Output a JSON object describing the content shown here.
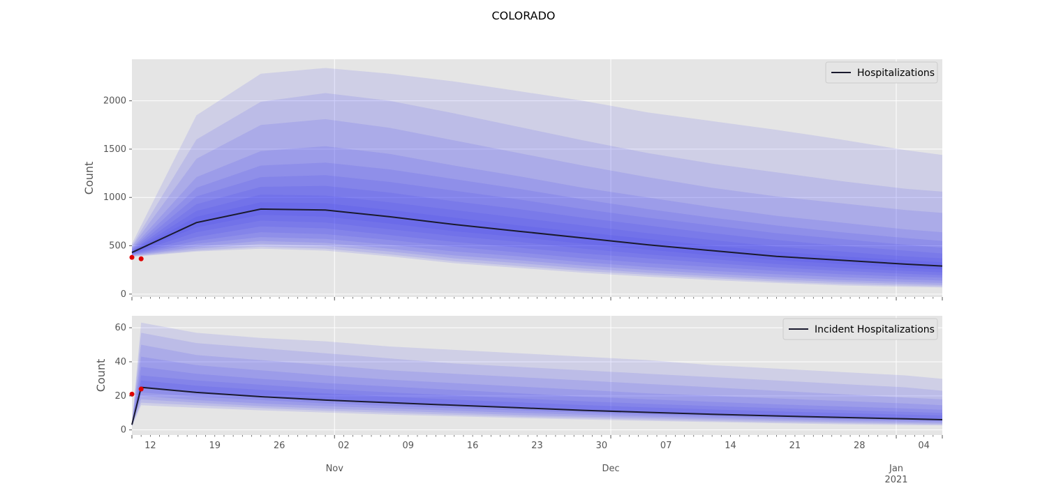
{
  "figure": {
    "title": "COLORADO"
  },
  "colors": {
    "panel_bg": "#e5e5e5",
    "grid": "#ffffff",
    "band": "#3c3cf0",
    "median": "#1a1a2e",
    "observed": "#e00000",
    "tick": "#555555"
  },
  "chart_data": [
    {
      "type": "area",
      "title": "",
      "ylabel": "Count",
      "xlim": [
        "2020-10-10",
        "2021-01-06"
      ],
      "ylim": [
        -30,
        2430
      ],
      "yticks": [
        0,
        500,
        1000,
        1500,
        2000
      ],
      "grid": true,
      "legend": {
        "placement": "top-right",
        "entries": [
          "Hospitalizations"
        ]
      },
      "x": [
        "2020-10-10",
        "2020-10-17",
        "2020-10-24",
        "2020-10-31",
        "2020-11-07",
        "2020-11-14",
        "2020-11-21",
        "2020-11-28",
        "2020-12-05",
        "2020-12-12",
        "2020-12-19",
        "2020-12-26",
        "2021-01-02",
        "2021-01-06"
      ],
      "median": [
        430,
        740,
        880,
        870,
        800,
        720,
        650,
        580,
        510,
        450,
        390,
        350,
        310,
        290
      ],
      "quantile_bands": [
        {
          "upper": [
            520,
            1850,
            2280,
            2340,
            2280,
            2200,
            2100,
            2000,
            1880,
            1790,
            1700,
            1600,
            1490,
            1440
          ]
        },
        {
          "upper": [
            500,
            1600,
            1990,
            2080,
            2000,
            1870,
            1730,
            1590,
            1460,
            1350,
            1260,
            1170,
            1090,
            1060
          ]
        },
        {
          "upper": [
            490,
            1400,
            1750,
            1810,
            1720,
            1590,
            1460,
            1330,
            1210,
            1100,
            1010,
            940,
            870,
            840
          ]
        },
        {
          "upper": [
            475,
            1210,
            1480,
            1530,
            1450,
            1330,
            1220,
            1100,
            1000,
            900,
            810,
            740,
            670,
            640
          ]
        },
        {
          "upper": [
            465,
            1100,
            1330,
            1360,
            1290,
            1190,
            1090,
            980,
            880,
            790,
            710,
            640,
            580,
            550
          ]
        },
        {
          "upper": [
            455,
            1010,
            1210,
            1230,
            1160,
            1070,
            980,
            880,
            790,
            710,
            630,
            570,
            510,
            480
          ]
        },
        {
          "upper": [
            445,
            930,
            1110,
            1120,
            1050,
            960,
            880,
            790,
            710,
            630,
            560,
            500,
            450,
            420
          ]
        },
        {
          "upper": [
            440,
            860,
            1030,
            1020,
            950,
            870,
            790,
            710,
            630,
            560,
            490,
            440,
            390,
            370
          ]
        },
        {
          "upper": [
            435,
            800,
            950,
            940,
            870,
            790,
            710,
            640,
            570,
            500,
            440,
            390,
            350,
            330
          ]
        },
        {
          "lower": [
            425,
            690,
            820,
            800,
            730,
            650,
            590,
            520,
            460,
            400,
            350,
            310,
            270,
            255
          ]
        },
        {
          "lower": [
            420,
            640,
            760,
            740,
            670,
            600,
            540,
            470,
            410,
            360,
            310,
            270,
            240,
            225
          ]
        },
        {
          "lower": [
            415,
            590,
            700,
            680,
            610,
            540,
            480,
            420,
            370,
            320,
            275,
            240,
            210,
            195
          ]
        },
        {
          "lower": [
            410,
            550,
            640,
            620,
            560,
            490,
            430,
            370,
            320,
            280,
            240,
            205,
            180,
            170
          ]
        },
        {
          "lower": [
            405,
            520,
            590,
            570,
            510,
            440,
            390,
            330,
            280,
            240,
            205,
            175,
            150,
            140
          ]
        },
        {
          "lower": [
            400,
            490,
            550,
            530,
            470,
            400,
            350,
            295,
            250,
            210,
            175,
            145,
            125,
            115
          ]
        },
        {
          "lower": [
            395,
            470,
            520,
            500,
            440,
            370,
            320,
            265,
            220,
            185,
            150,
            125,
            105,
            95
          ]
        },
        {
          "lower": [
            390,
            450,
            490,
            470,
            410,
            340,
            290,
            240,
            200,
            165,
            130,
            105,
            88,
            80
          ]
        },
        {
          "lower": [
            385,
            440,
            470,
            450,
            390,
            320,
            270,
            220,
            180,
            145,
            115,
            90,
            75,
            68
          ]
        }
      ],
      "observed": [
        {
          "x": "2020-10-10",
          "y": 380
        },
        {
          "x": "2020-10-11",
          "y": 365
        }
      ]
    },
    {
      "type": "area",
      "title": "",
      "ylabel": "Count",
      "xlim": [
        "2020-10-10",
        "2021-01-06"
      ],
      "ylim": [
        -3,
        67
      ],
      "yticks": [
        0,
        20,
        40,
        60
      ],
      "grid": true,
      "legend": {
        "placement": "top-right",
        "entries": [
          "Incident Hospitalizations"
        ]
      },
      "x": [
        "2020-10-10",
        "2020-10-11",
        "2020-10-17",
        "2020-10-24",
        "2020-10-31",
        "2020-11-07",
        "2020-11-14",
        "2020-11-21",
        "2020-11-28",
        "2020-12-05",
        "2020-12-12",
        "2020-12-19",
        "2020-12-26",
        "2021-01-02",
        "2021-01-06"
      ],
      "median": [
        3,
        25,
        22,
        19.5,
        17.5,
        16,
        14.5,
        13,
        11.5,
        10.3,
        9.2,
        8.2,
        7.3,
        6.5,
        6
      ],
      "quantile_bands": [
        {
          "upper": [
            4,
            63,
            57,
            54,
            52,
            49,
            47,
            45,
            43,
            41,
            38,
            36,
            34,
            32,
            30
          ]
        },
        {
          "upper": [
            4,
            57,
            51,
            48,
            45,
            42,
            39,
            37,
            35,
            33,
            31,
            29,
            27,
            25,
            23
          ]
        },
        {
          "upper": [
            4,
            50,
            44,
            41,
            38,
            35,
            33,
            31,
            29,
            27,
            25,
            23,
            21,
            19,
            18
          ]
        },
        {
          "upper": [
            3.8,
            43,
            38,
            35,
            32,
            29.5,
            27.5,
            25.5,
            23.5,
            21.5,
            20,
            18.5,
            17,
            15.5,
            14.5
          ]
        },
        {
          "upper": [
            3.6,
            37,
            33,
            30,
            27.5,
            25.5,
            23.5,
            21.5,
            19.5,
            18,
            16.5,
            15,
            13.8,
            12.6,
            11.8
          ]
        },
        {
          "upper": [
            3.4,
            32,
            29,
            26.5,
            24,
            22,
            20.3,
            18.5,
            16.8,
            15.3,
            14,
            12.8,
            11.6,
            10.6,
            10
          ]
        },
        {
          "upper": [
            3.2,
            29,
            26,
            23.5,
            21.5,
            19.5,
            17.8,
            16.2,
            14.6,
            13.2,
            12,
            10.9,
            9.9,
            9,
            8.5
          ]
        },
        {
          "lower": [
            2.8,
            22,
            19.5,
            17.5,
            15.5,
            14,
            12.7,
            11.4,
            10.1,
            9,
            8,
            7.1,
            6.3,
            5.6,
            5.2
          ]
        },
        {
          "lower": [
            2.6,
            20,
            17.5,
            15.5,
            14,
            12.6,
            11.3,
            10,
            8.9,
            7.9,
            7,
            6.2,
            5.5,
            4.8,
            4.4
          ]
        },
        {
          "lower": [
            2.4,
            18,
            16,
            14,
            12.5,
            11.2,
            10,
            8.8,
            7.8,
            6.9,
            6.1,
            5.3,
            4.6,
            4,
            3.7
          ]
        },
        {
          "lower": [
            2.2,
            16,
            14.5,
            12.8,
            11.3,
            10,
            8.9,
            7.8,
            6.9,
            6,
            5.2,
            4.5,
            3.9,
            3.4,
            3.1
          ]
        },
        {
          "lower": [
            2,
            14.5,
            13,
            11.5,
            10.2,
            9,
            8,
            7,
            6.1,
            5.3,
            4.6,
            3.9,
            3.3,
            2.8,
            2.6
          ]
        }
      ],
      "observed": [
        {
          "x": "2020-10-10",
          "y": 21
        },
        {
          "x": "2020-10-11",
          "y": 24
        }
      ]
    }
  ],
  "x_axis": {
    "day_ticks": [
      {
        "date": "2020-10-12",
        "label": "12"
      },
      {
        "date": "2020-10-19",
        "label": "19"
      },
      {
        "date": "2020-10-26",
        "label": "26"
      },
      {
        "date": "2020-11-02",
        "label": "02"
      },
      {
        "date": "2020-11-09",
        "label": "09"
      },
      {
        "date": "2020-11-16",
        "label": "16"
      },
      {
        "date": "2020-11-23",
        "label": "23"
      },
      {
        "date": "2020-11-30",
        "label": "30"
      },
      {
        "date": "2020-12-07",
        "label": "07"
      },
      {
        "date": "2020-12-14",
        "label": "14"
      },
      {
        "date": "2020-12-21",
        "label": "21"
      },
      {
        "date": "2020-12-28",
        "label": "28"
      },
      {
        "date": "2021-01-04",
        "label": "04"
      }
    ],
    "month_ticks": [
      {
        "date": "2020-11-01",
        "label": "Nov",
        "sublabel": ""
      },
      {
        "date": "2020-12-01",
        "label": "Dec",
        "sublabel": ""
      },
      {
        "date": "2021-01-01",
        "label": "Jan",
        "sublabel": "2021"
      }
    ]
  }
}
